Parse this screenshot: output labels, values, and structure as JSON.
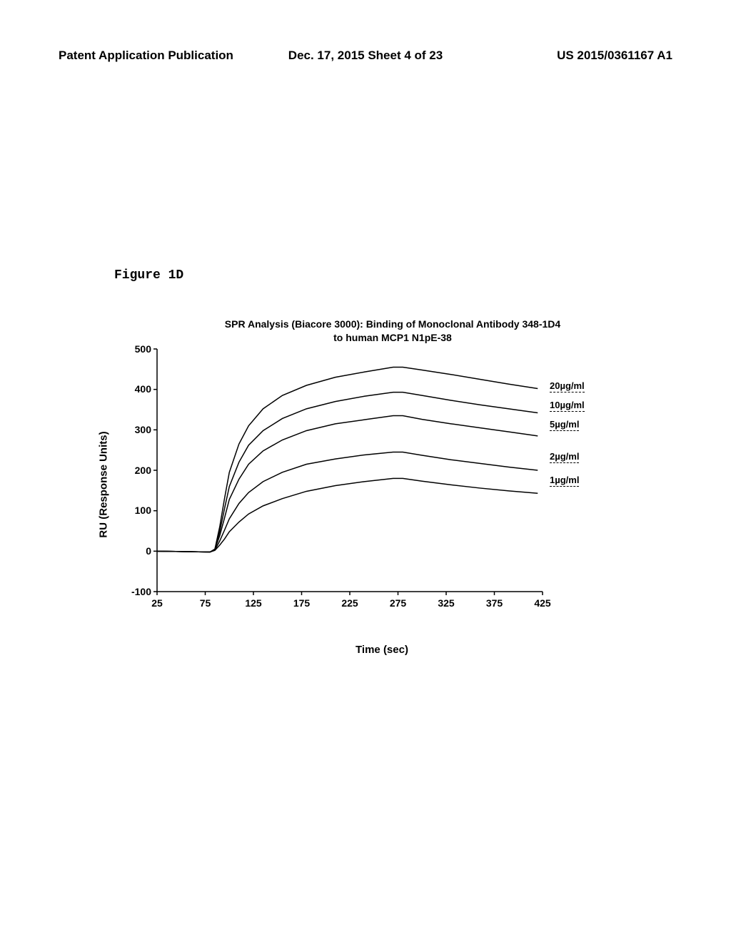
{
  "header": {
    "left": "Patent Application Publication",
    "center": "Dec. 17, 2015  Sheet 4 of 23",
    "right": "US 2015/0361167 A1"
  },
  "figure_label": "Figure 1D",
  "chart": {
    "type": "line",
    "title_line1": "SPR Analysis (Biacore 3000): Binding of Monoclonal Antibody 348-1D4",
    "title_line2": "to human MCP1 N1pE-38",
    "xlabel": "Time (sec)",
    "ylabel": "RU (Response Units)",
    "xlim": [
      25,
      425
    ],
    "ylim": [
      -100,
      500
    ],
    "xticks": [
      25,
      75,
      125,
      175,
      225,
      275,
      325,
      375,
      425
    ],
    "yticks": [
      -100,
      0,
      100,
      200,
      300,
      400,
      500
    ],
    "line_color": "#000000",
    "line_width": 1.5,
    "background_color": "#ffffff",
    "series": [
      {
        "label": "20µg/ml",
        "label_y": 408,
        "points": [
          [
            25,
            0
          ],
          [
            80,
            -2
          ],
          [
            85,
            5
          ],
          [
            90,
            60
          ],
          [
            95,
            130
          ],
          [
            100,
            195
          ],
          [
            110,
            265
          ],
          [
            120,
            310
          ],
          [
            135,
            352
          ],
          [
            155,
            385
          ],
          [
            180,
            410
          ],
          [
            210,
            430
          ],
          [
            240,
            443
          ],
          [
            270,
            455
          ],
          [
            280,
            455
          ],
          [
            300,
            448
          ],
          [
            330,
            437
          ],
          [
            360,
            425
          ],
          [
            390,
            413
          ],
          [
            420,
            402
          ]
        ]
      },
      {
        "label": "10µg/ml",
        "label_y": 360,
        "points": [
          [
            25,
            0
          ],
          [
            80,
            -2
          ],
          [
            85,
            5
          ],
          [
            90,
            48
          ],
          [
            95,
            105
          ],
          [
            100,
            160
          ],
          [
            110,
            220
          ],
          [
            120,
            262
          ],
          [
            135,
            298
          ],
          [
            155,
            328
          ],
          [
            180,
            352
          ],
          [
            210,
            370
          ],
          [
            240,
            383
          ],
          [
            270,
            393
          ],
          [
            280,
            393
          ],
          [
            300,
            385
          ],
          [
            330,
            373
          ],
          [
            360,
            362
          ],
          [
            390,
            352
          ],
          [
            420,
            342
          ]
        ]
      },
      {
        "label": "5µg/ml",
        "label_y": 313,
        "points": [
          [
            25,
            0
          ],
          [
            80,
            -2
          ],
          [
            85,
            5
          ],
          [
            90,
            38
          ],
          [
            95,
            82
          ],
          [
            100,
            128
          ],
          [
            110,
            178
          ],
          [
            120,
            215
          ],
          [
            135,
            248
          ],
          [
            155,
            275
          ],
          [
            180,
            298
          ],
          [
            210,
            315
          ],
          [
            240,
            325
          ],
          [
            270,
            335
          ],
          [
            280,
            335
          ],
          [
            300,
            326
          ],
          [
            330,
            315
          ],
          [
            360,
            305
          ],
          [
            390,
            295
          ],
          [
            420,
            285
          ]
        ]
      },
      {
        "label": "2µg/ml",
        "label_y": 233,
        "points": [
          [
            25,
            0
          ],
          [
            80,
            -2
          ],
          [
            85,
            3
          ],
          [
            90,
            25
          ],
          [
            95,
            52
          ],
          [
            100,
            80
          ],
          [
            110,
            118
          ],
          [
            120,
            145
          ],
          [
            135,
            172
          ],
          [
            155,
            195
          ],
          [
            180,
            215
          ],
          [
            210,
            228
          ],
          [
            240,
            238
          ],
          [
            270,
            245
          ],
          [
            280,
            245
          ],
          [
            300,
            237
          ],
          [
            330,
            226
          ],
          [
            360,
            217
          ],
          [
            390,
            208
          ],
          [
            420,
            200
          ]
        ]
      },
      {
        "label": "1µg/ml",
        "label_y": 175,
        "points": [
          [
            25,
            0
          ],
          [
            80,
            -2
          ],
          [
            85,
            2
          ],
          [
            90,
            15
          ],
          [
            95,
            30
          ],
          [
            100,
            48
          ],
          [
            110,
            72
          ],
          [
            120,
            92
          ],
          [
            135,
            112
          ],
          [
            155,
            130
          ],
          [
            180,
            148
          ],
          [
            210,
            162
          ],
          [
            240,
            172
          ],
          [
            270,
            180
          ],
          [
            280,
            180
          ],
          [
            300,
            173
          ],
          [
            330,
            164
          ],
          [
            360,
            156
          ],
          [
            390,
            149
          ],
          [
            420,
            143
          ]
        ]
      }
    ]
  }
}
